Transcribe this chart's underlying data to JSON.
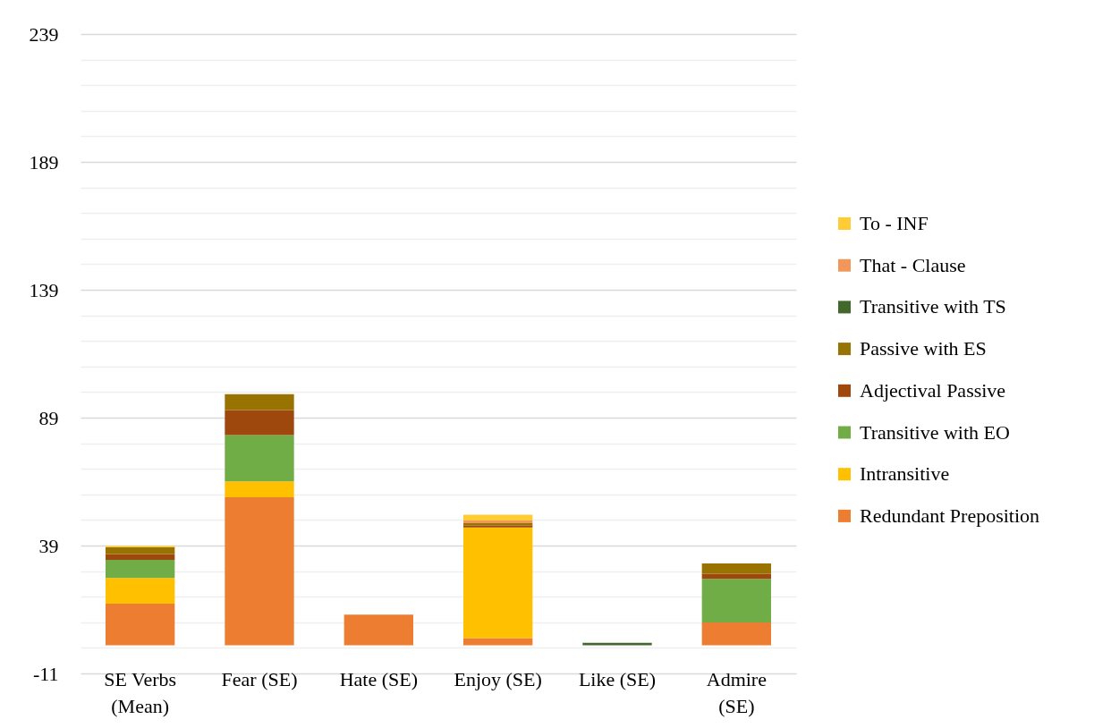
{
  "chart_data": {
    "type": "bar",
    "stacked": true,
    "categories": [
      "SE Verbs (Mean)",
      "Fear (SE)",
      "Hate (SE)",
      "Enjoy (SE)",
      "Like (SE)",
      "Admire (SE)"
    ],
    "series": [
      {
        "name": "Redundant Preposition",
        "color": "#ed7d31",
        "values": [
          16.3,
          57.9,
          12.0,
          2.8,
          null,
          8.9
        ]
      },
      {
        "name": "Intransitive",
        "color": "#ffc000",
        "values": [
          10.0,
          6.2,
          null,
          43.3,
          null,
          null
        ]
      },
      {
        "name": "Transitive with EO",
        "color": "#70ad47",
        "values": [
          7.1,
          18.1,
          null,
          null,
          null,
          17.1
        ]
      },
      {
        "name": "Adjectival Passive",
        "color": "#9e480e",
        "values": [
          2.3,
          9.8,
          null,
          0.7,
          null,
          2.0
        ]
      },
      {
        "name": "Passive with ES",
        "color": "#997300",
        "values": [
          2.6,
          6.2,
          null,
          0.9,
          null,
          4.0
        ]
      },
      {
        "name": "Transitive with TS",
        "color": "#43682b",
        "values": [
          null,
          null,
          null,
          null,
          1.0,
          null
        ]
      },
      {
        "name": "That - Clause",
        "color": "#f1975a",
        "values": [
          null,
          null,
          null,
          1.1,
          null,
          null
        ]
      },
      {
        "name": "To - INF",
        "color": "#ffcd33",
        "values": [
          0.5,
          null,
          null,
          2.3,
          null,
          null
        ]
      }
    ],
    "ylim": [
      -11,
      239
    ],
    "yticks": [
      -11,
      {
        "value": -1,
        "label": null
      },
      {
        "value": 9,
        "label": null
      },
      {
        "value": 19,
        "label": null
      },
      {
        "value": 29,
        "label": null
      },
      39,
      {
        "value": 49,
        "label": null
      },
      {
        "value": 59,
        "label": null
      },
      {
        "value": 69,
        "label": null
      },
      {
        "value": 79,
        "label": null
      },
      89,
      {
        "value": 99,
        "label": null
      },
      {
        "value": 109,
        "label": null
      },
      {
        "value": 119,
        "label": null
      },
      {
        "value": 129,
        "label": null
      },
      139,
      {
        "value": 149,
        "label": null
      },
      {
        "value": 159,
        "label": null
      },
      {
        "value": 169,
        "label": null
      },
      {
        "value": 179,
        "label": null
      },
      189,
      {
        "value": 199,
        "label": null
      },
      {
        "value": 209,
        "label": null
      },
      {
        "value": 219,
        "label": null
      },
      {
        "value": 229,
        "label": null
      },
      239
    ],
    "grid": "y",
    "legend": "right"
  }
}
